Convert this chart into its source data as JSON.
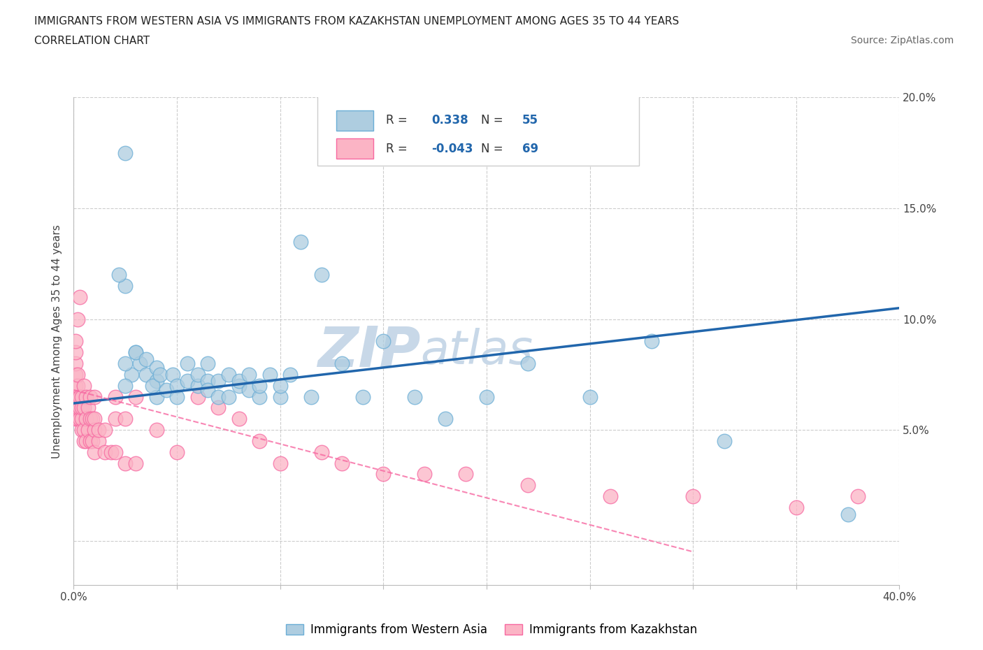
{
  "title_line1": "IMMIGRANTS FROM WESTERN ASIA VS IMMIGRANTS FROM KAZAKHSTAN UNEMPLOYMENT AMONG AGES 35 TO 44 YEARS",
  "title_line2": "CORRELATION CHART",
  "source_text": "Source: ZipAtlas.com",
  "ylabel_label": "Unemployment Among Ages 35 to 44 years",
  "xmin": 0.0,
  "xmax": 0.4,
  "ymin": -0.02,
  "ymax": 0.2,
  "x_ticks": [
    0.0,
    0.05,
    0.1,
    0.15,
    0.2,
    0.25,
    0.3,
    0.35,
    0.4
  ],
  "y_ticks": [
    0.0,
    0.05,
    0.1,
    0.15,
    0.2
  ],
  "grid_color": "#cccccc",
  "watermark_text": "ZIPatlas",
  "watermark_color": "#c8d8e8",
  "blue_edge": "#6baed6",
  "blue_fill": "#aecde0",
  "pink_edge": "#f768a1",
  "pink_fill": "#fbb4c5",
  "trend_blue": "#2166ac",
  "trend_pink": "#f768a1",
  "R_blue": 0.338,
  "N_blue": 55,
  "R_pink": -0.043,
  "N_pink": 69,
  "legend_label_blue": "Immigrants from Western Asia",
  "legend_label_pink": "Immigrants from Kazakhstan",
  "blue_scatter_x": [
    0.025,
    0.025,
    0.022,
    0.028,
    0.025,
    0.03,
    0.025,
    0.032,
    0.03,
    0.035,
    0.035,
    0.04,
    0.04,
    0.04,
    0.038,
    0.042,
    0.045,
    0.048,
    0.05,
    0.05,
    0.055,
    0.055,
    0.06,
    0.06,
    0.065,
    0.065,
    0.065,
    0.07,
    0.07,
    0.075,
    0.075,
    0.08,
    0.08,
    0.085,
    0.085,
    0.09,
    0.09,
    0.095,
    0.1,
    0.1,
    0.105,
    0.11,
    0.115,
    0.12,
    0.13,
    0.14,
    0.15,
    0.165,
    0.18,
    0.2,
    0.22,
    0.25,
    0.28,
    0.315,
    0.375
  ],
  "blue_scatter_y": [
    0.175,
    0.115,
    0.12,
    0.075,
    0.08,
    0.085,
    0.07,
    0.08,
    0.085,
    0.075,
    0.082,
    0.072,
    0.078,
    0.065,
    0.07,
    0.075,
    0.068,
    0.075,
    0.07,
    0.065,
    0.072,
    0.08,
    0.07,
    0.075,
    0.072,
    0.068,
    0.08,
    0.072,
    0.065,
    0.075,
    0.065,
    0.07,
    0.072,
    0.075,
    0.068,
    0.065,
    0.07,
    0.075,
    0.065,
    0.07,
    0.075,
    0.135,
    0.065,
    0.12,
    0.08,
    0.065,
    0.09,
    0.065,
    0.055,
    0.065,
    0.08,
    0.065,
    0.09,
    0.045,
    0.012
  ],
  "pink_scatter_x": [
    0.001,
    0.001,
    0.001,
    0.001,
    0.001,
    0.001,
    0.001,
    0.001,
    0.002,
    0.002,
    0.002,
    0.002,
    0.002,
    0.002,
    0.003,
    0.003,
    0.003,
    0.003,
    0.004,
    0.004,
    0.004,
    0.004,
    0.005,
    0.005,
    0.005,
    0.005,
    0.006,
    0.006,
    0.006,
    0.007,
    0.007,
    0.008,
    0.008,
    0.008,
    0.009,
    0.009,
    0.01,
    0.01,
    0.01,
    0.01,
    0.012,
    0.012,
    0.015,
    0.015,
    0.018,
    0.02,
    0.02,
    0.02,
    0.025,
    0.025,
    0.03,
    0.03,
    0.04,
    0.05,
    0.06,
    0.07,
    0.08,
    0.09,
    0.1,
    0.12,
    0.13,
    0.15,
    0.17,
    0.19,
    0.22,
    0.26,
    0.3,
    0.35,
    0.38
  ],
  "pink_scatter_y": [
    0.055,
    0.06,
    0.065,
    0.07,
    0.075,
    0.08,
    0.085,
    0.09,
    0.055,
    0.06,
    0.065,
    0.07,
    0.075,
    0.1,
    0.055,
    0.06,
    0.065,
    0.11,
    0.05,
    0.055,
    0.06,
    0.065,
    0.045,
    0.05,
    0.06,
    0.07,
    0.045,
    0.055,
    0.065,
    0.05,
    0.06,
    0.045,
    0.055,
    0.065,
    0.045,
    0.055,
    0.04,
    0.05,
    0.055,
    0.065,
    0.045,
    0.05,
    0.04,
    0.05,
    0.04,
    0.04,
    0.055,
    0.065,
    0.035,
    0.055,
    0.035,
    0.065,
    0.05,
    0.04,
    0.065,
    0.06,
    0.055,
    0.045,
    0.035,
    0.04,
    0.035,
    0.03,
    0.03,
    0.03,
    0.025,
    0.02,
    0.02,
    0.015,
    0.02
  ],
  "blue_trend_x": [
    0.0,
    0.4
  ],
  "blue_trend_y": [
    0.062,
    0.105
  ],
  "pink_trend_x": [
    0.0,
    0.3
  ],
  "pink_trend_y": [
    0.068,
    -0.005
  ]
}
